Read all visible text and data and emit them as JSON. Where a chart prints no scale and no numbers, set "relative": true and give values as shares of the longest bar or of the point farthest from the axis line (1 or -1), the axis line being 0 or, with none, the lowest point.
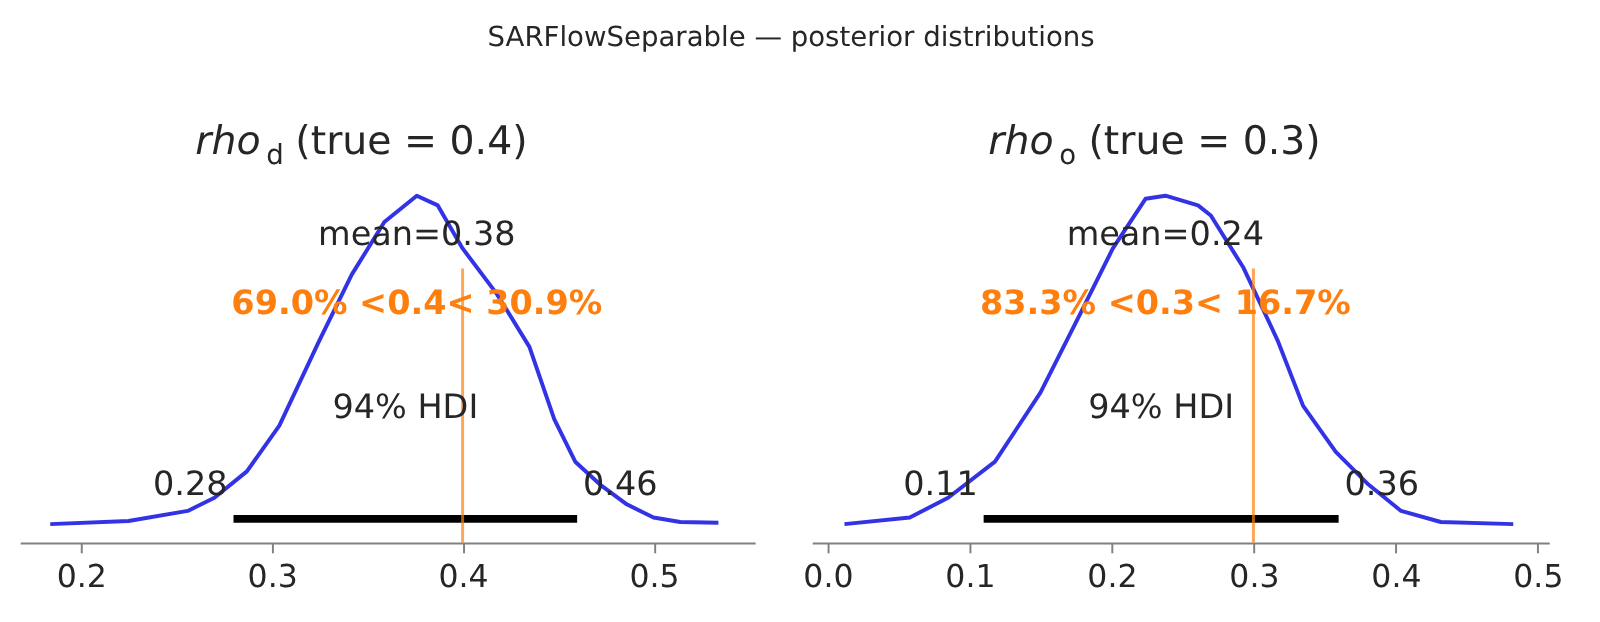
{
  "chart_data": [
    {
      "type": "other",
      "title": "SARFlowSeparable — posterior distributions"
    },
    {
      "type": "line",
      "title": "rho$_{d}$ (true = 0.4)",
      "relative": true,
      "xlim": [
        0.168,
        0.553
      ],
      "xticks": [
        0.2,
        0.3,
        0.4,
        0.5
      ],
      "grid": false,
      "series": [
        {
          "color": "#3333e6",
          "x": [
            0.184,
            0.225,
            0.256,
            0.27,
            0.287,
            0.304,
            0.325,
            0.342,
            0.359,
            0.376,
            0.387,
            0.4,
            0.418,
            0.435,
            0.448,
            0.459,
            0.472,
            0.486,
            0.5,
            0.514,
            0.534
          ],
          "values": [
            0.053,
            0.062,
            0.091,
            0.129,
            0.205,
            0.337,
            0.583,
            0.773,
            0.924,
            1.0,
            0.972,
            0.848,
            0.716,
            0.564,
            0.356,
            0.233,
            0.167,
            0.11,
            0.072,
            0.059,
            0.057
          ]
        },
        {
          "color": "#000000",
          "x": [
            0.28,
            0.46
          ],
          "values": [
            0.068,
            0.068
          ]
        }
      ],
      "ref_lines": [
        {
          "axis": "x",
          "value": 0.4,
          "color": "#ff7f0e"
        }
      ],
      "annotations": [
        "mean=0.38",
        "69.0% <0.4< 30.9%",
        "94% HDI",
        {
          "text": "0.28",
          "x": 0.28,
          "y": 0.068
        },
        {
          "text": "0.46",
          "x": 0.46,
          "y": 0.068
        }
      ]
    },
    {
      "type": "line",
      "title": "rho$_{o}$ (true = 0.3)",
      "relative": true,
      "xlim": [
        -0.011,
        0.508
      ],
      "xticks": [
        {
          "value": 0,
          "label": "0.0"
        },
        0.1,
        0.2,
        0.3,
        0.4,
        0.5
      ],
      "grid": false,
      "series": [
        {
          "color": "#3333e6",
          "x": [
            0.012,
            0.058,
            0.085,
            0.118,
            0.15,
            0.178,
            0.201,
            0.224,
            0.238,
            0.261,
            0.27,
            0.293,
            0.317,
            0.335,
            0.358,
            0.381,
            0.404,
            0.432,
            0.483
          ],
          "values": [
            0.053,
            0.072,
            0.129,
            0.233,
            0.432,
            0.659,
            0.848,
            0.991,
            1.0,
            0.972,
            0.943,
            0.792,
            0.583,
            0.394,
            0.261,
            0.167,
            0.091,
            0.059,
            0.053
          ]
        },
        {
          "color": "#000000",
          "x": [
            0.11,
            0.36
          ],
          "values": [
            0.068,
            0.068
          ]
        }
      ],
      "ref_lines": [
        {
          "axis": "x",
          "value": 0.3,
          "color": "#ff7f0e"
        }
      ],
      "annotations": [
        "mean=0.24",
        "83.3% <0.3< 16.7%",
        "94% HDI",
        {
          "text": "0.11",
          "x": 0.11,
          "y": 0.068
        },
        {
          "text": "0.36",
          "x": 0.36,
          "y": 0.068
        }
      ]
    }
  ]
}
